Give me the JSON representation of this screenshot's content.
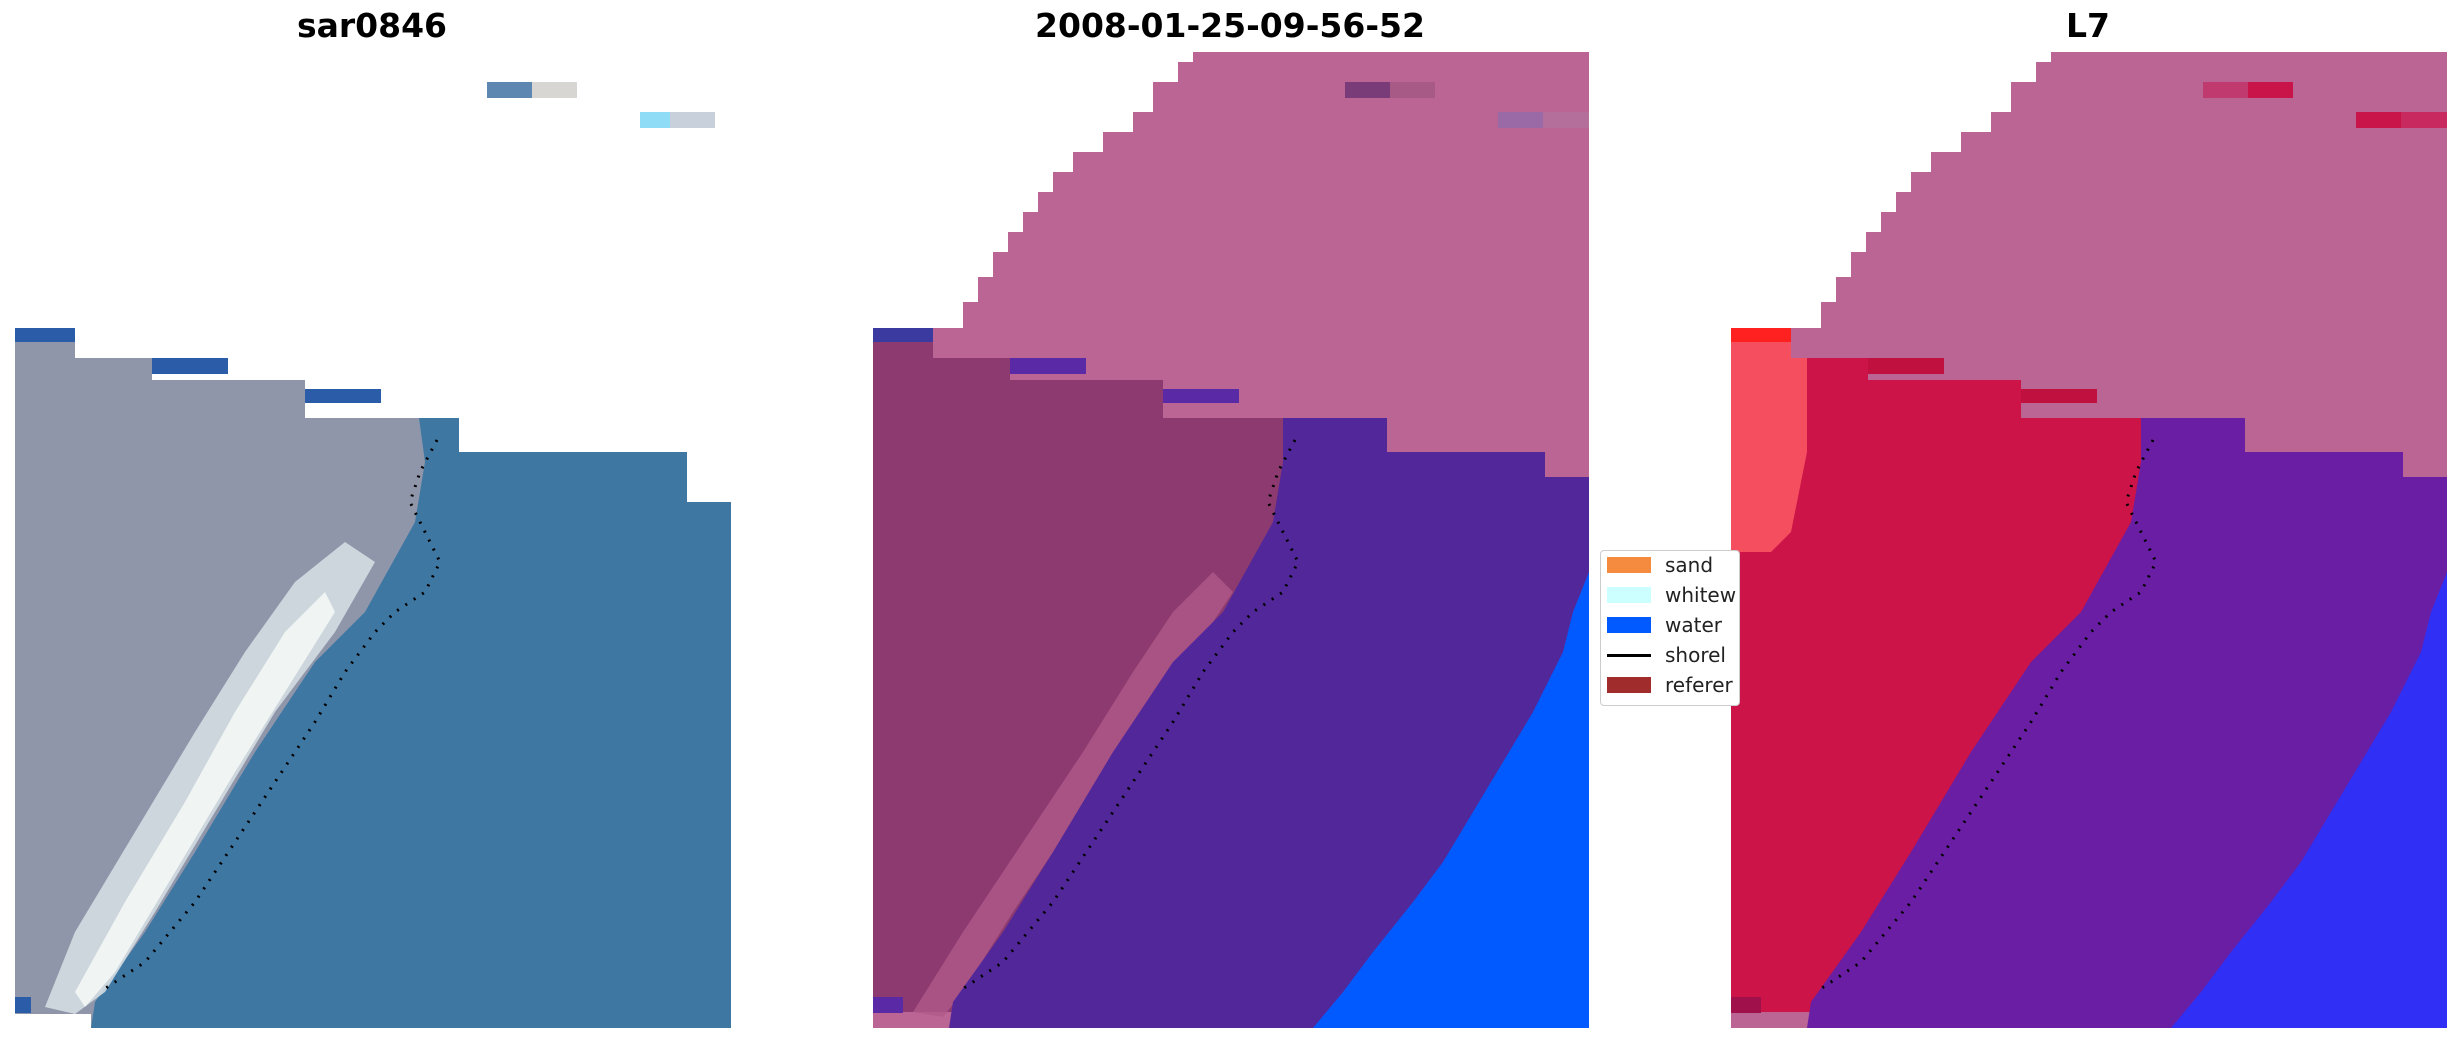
{
  "panels": [
    {
      "title": "sar0846"
    },
    {
      "title": "2008-01-25-09-56-52"
    },
    {
      "title": "L7"
    }
  ],
  "legend": {
    "items": [
      {
        "label": "sand",
        "color": "#f58b3f",
        "kind": "patch"
      },
      {
        "label": "whitew",
        "color": "#ccffff",
        "kind": "patch"
      },
      {
        "label": "water",
        "color": "#005aff",
        "kind": "patch"
      },
      {
        "label": "shorel",
        "color": "#000000",
        "kind": "line"
      },
      {
        "label": "referer",
        "color": "#a02c2c",
        "kind": "patch"
      }
    ]
  },
  "colors": {
    "background": "#ffffff",
    "rgb_water": "#3f77a3",
    "rgb_land": "#8f96aa",
    "rgb_sand_streak": "#e8eef0",
    "class_mask_pink": "#bb6595",
    "class_land_purple": "#8c3a70",
    "class_water_purple": "#522799",
    "class_water_blue": "#005aff",
    "index_red": "#cc1448",
    "index_purple": "#6a1ea4",
    "index_blue": "#2f2ff5"
  }
}
